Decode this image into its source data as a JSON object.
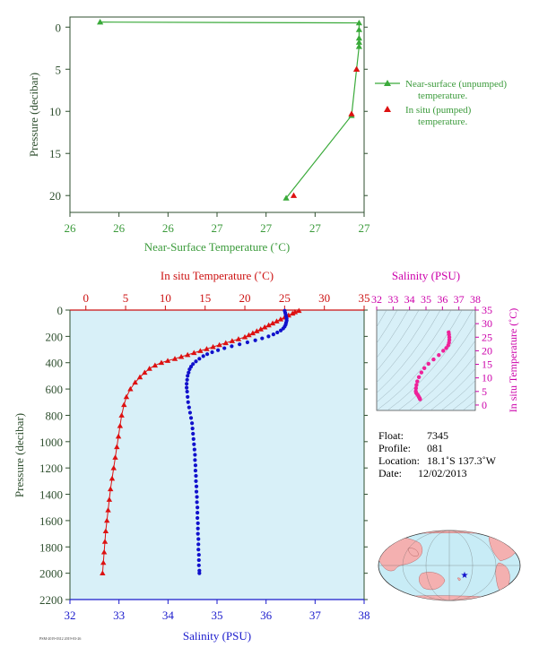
{
  "chart_data": [
    {
      "id": "near_surface",
      "type": "scatter",
      "xlabel": "Near-Surface Temperature (˚C)",
      "ylabel": "Pressure (decibar)",
      "x_tick_labels": [
        "26",
        "26",
        "26",
        "27",
        "27",
        "27",
        "27"
      ],
      "xlim": [
        25.9,
        27.07
      ],
      "y_ticks": [
        0,
        5,
        10,
        15,
        20
      ],
      "ylim": [
        -1.2,
        22
      ],
      "y_inverted": true,
      "series": [
        {
          "name": "Near-surface (unpumped) temperature.",
          "color": "#3aaa3a",
          "marker": "triangle",
          "connected": true,
          "points": [
            {
              "x": 26.02,
              "y": -0.6
            },
            {
              "x": 27.05,
              "y": -0.5
            },
            {
              "x": 27.05,
              "y": 0.3
            },
            {
              "x": 27.05,
              "y": 1.3
            },
            {
              "x": 27.05,
              "y": 1.8
            },
            {
              "x": 27.05,
              "y": 2.3
            },
            {
              "x": 27.04,
              "y": 5.0
            },
            {
              "x": 27.02,
              "y": 10.5
            },
            {
              "x": 26.76,
              "y": 20.3
            }
          ]
        },
        {
          "name": "In situ (pumped) temperature.",
          "color": "#dd1111",
          "marker": "triangle",
          "connected": false,
          "points": [
            {
              "x": 27.04,
              "y": 5.0
            },
            {
              "x": 27.02,
              "y": 10.3
            },
            {
              "x": 26.79,
              "y": 20.0
            }
          ]
        }
      ]
    },
    {
      "id": "main_profile",
      "type": "line",
      "ylabel": "Pressure (decibar)",
      "y_ticks": [
        0,
        200,
        400,
        600,
        800,
        1000,
        1200,
        1400,
        1600,
        1800,
        2000,
        2200
      ],
      "ylim": [
        0,
        2200
      ],
      "y_inverted": true,
      "top_axis": {
        "label": "In situ Temperature (˚C)",
        "ticks": [
          0,
          5,
          10,
          15,
          20,
          25,
          30,
          35
        ],
        "range": [
          -2,
          35
        ]
      },
      "bottom_axis": {
        "label": "Salinity (PSU)",
        "ticks": [
          32,
          33,
          34,
          35,
          36,
          37,
          38
        ],
        "range": [
          32,
          38
        ]
      },
      "series": [
        {
          "name": "In situ Temperature",
          "color": "#dd1111",
          "marker": "triangle",
          "points": [
            {
              "x": 26.8,
              "y": 5
            },
            {
              "x": 26.3,
              "y": 15
            },
            {
              "x": 26.0,
              "y": 25
            },
            {
              "x": 25.5,
              "y": 40
            },
            {
              "x": 25.0,
              "y": 55
            },
            {
              "x": 24.5,
              "y": 70
            },
            {
              "x": 24.0,
              "y": 85
            },
            {
              "x": 23.5,
              "y": 100
            },
            {
              "x": 23.0,
              "y": 115
            },
            {
              "x": 22.5,
              "y": 130
            },
            {
              "x": 22.0,
              "y": 145
            },
            {
              "x": 21.5,
              "y": 160
            },
            {
              "x": 21.0,
              "y": 175
            },
            {
              "x": 20.5,
              "y": 190
            },
            {
              "x": 20.0,
              "y": 205
            },
            {
              "x": 19.2,
              "y": 220
            },
            {
              "x": 18.4,
              "y": 235
            },
            {
              "x": 17.6,
              "y": 250
            },
            {
              "x": 16.8,
              "y": 265
            },
            {
              "x": 16.0,
              "y": 280
            },
            {
              "x": 15.2,
              "y": 295
            },
            {
              "x": 14.4,
              "y": 310
            },
            {
              "x": 13.6,
              "y": 325
            },
            {
              "x": 12.8,
              "y": 340
            },
            {
              "x": 12.0,
              "y": 355
            },
            {
              "x": 11.2,
              "y": 370
            },
            {
              "x": 10.3,
              "y": 385
            },
            {
              "x": 9.5,
              "y": 400
            },
            {
              "x": 8.7,
              "y": 420
            },
            {
              "x": 8.0,
              "y": 445
            },
            {
              "x": 7.4,
              "y": 475
            },
            {
              "x": 6.8,
              "y": 510
            },
            {
              "x": 6.2,
              "y": 550
            },
            {
              "x": 5.6,
              "y": 600
            },
            {
              "x": 5.1,
              "y": 660
            },
            {
              "x": 4.8,
              "y": 720
            },
            {
              "x": 4.5,
              "y": 800
            },
            {
              "x": 4.3,
              "y": 880
            },
            {
              "x": 4.1,
              "y": 960
            },
            {
              "x": 3.9,
              "y": 1040
            },
            {
              "x": 3.7,
              "y": 1120
            },
            {
              "x": 3.5,
              "y": 1200
            },
            {
              "x": 3.3,
              "y": 1280
            },
            {
              "x": 3.1,
              "y": 1360
            },
            {
              "x": 2.95,
              "y": 1440
            },
            {
              "x": 2.8,
              "y": 1520
            },
            {
              "x": 2.65,
              "y": 1600
            },
            {
              "x": 2.5,
              "y": 1680
            },
            {
              "x": 2.4,
              "y": 1760
            },
            {
              "x": 2.3,
              "y": 1840
            },
            {
              "x": 2.2,
              "y": 1920
            },
            {
              "x": 2.1,
              "y": 2000
            }
          ]
        },
        {
          "name": "Salinity",
          "color": "#1111cc",
          "marker": "dot",
          "points": [
            {
              "x": 36.38,
              "y": 5
            },
            {
              "x": 36.39,
              "y": 20
            },
            {
              "x": 36.4,
              "y": 35
            },
            {
              "x": 36.41,
              "y": 50
            },
            {
              "x": 36.42,
              "y": 65
            },
            {
              "x": 36.42,
              "y": 80
            },
            {
              "x": 36.41,
              "y": 95
            },
            {
              "x": 36.4,
              "y": 110
            },
            {
              "x": 36.38,
              "y": 125
            },
            {
              "x": 36.35,
              "y": 140
            },
            {
              "x": 36.3,
              "y": 155
            },
            {
              "x": 36.23,
              "y": 170
            },
            {
              "x": 36.15,
              "y": 185
            },
            {
              "x": 36.05,
              "y": 200
            },
            {
              "x": 35.92,
              "y": 215
            },
            {
              "x": 35.78,
              "y": 230
            },
            {
              "x": 35.62,
              "y": 245
            },
            {
              "x": 35.46,
              "y": 260
            },
            {
              "x": 35.3,
              "y": 275
            },
            {
              "x": 35.15,
              "y": 290
            },
            {
              "x": 35.02,
              "y": 305
            },
            {
              "x": 34.9,
              "y": 320
            },
            {
              "x": 34.8,
              "y": 335
            },
            {
              "x": 34.72,
              "y": 350
            },
            {
              "x": 34.64,
              "y": 370
            },
            {
              "x": 34.57,
              "y": 390
            },
            {
              "x": 34.51,
              "y": 410
            },
            {
              "x": 34.47,
              "y": 430
            },
            {
              "x": 34.44,
              "y": 450
            },
            {
              "x": 34.42,
              "y": 475
            },
            {
              "x": 34.4,
              "y": 500
            },
            {
              "x": 34.39,
              "y": 530
            },
            {
              "x": 34.38,
              "y": 560
            },
            {
              "x": 34.38,
              "y": 590
            },
            {
              "x": 34.39,
              "y": 620
            },
            {
              "x": 34.4,
              "y": 660
            },
            {
              "x": 34.41,
              "y": 700
            },
            {
              "x": 34.43,
              "y": 740
            },
            {
              "x": 34.45,
              "y": 780
            },
            {
              "x": 34.47,
              "y": 820
            },
            {
              "x": 34.49,
              "y": 860
            },
            {
              "x": 34.5,
              "y": 900
            },
            {
              "x": 34.51,
              "y": 940
            },
            {
              "x": 34.52,
              "y": 980
            },
            {
              "x": 34.53,
              "y": 1020
            },
            {
              "x": 34.54,
              "y": 1060
            },
            {
              "x": 34.55,
              "y": 1100
            },
            {
              "x": 34.55,
              "y": 1140
            },
            {
              "x": 34.56,
              "y": 1180
            },
            {
              "x": 34.56,
              "y": 1220
            },
            {
              "x": 34.57,
              "y": 1260
            },
            {
              "x": 34.57,
              "y": 1300
            },
            {
              "x": 34.58,
              "y": 1340
            },
            {
              "x": 34.58,
              "y": 1380
            },
            {
              "x": 34.59,
              "y": 1420
            },
            {
              "x": 34.59,
              "y": 1460
            },
            {
              "x": 34.6,
              "y": 1500
            },
            {
              "x": 34.6,
              "y": 1540
            },
            {
              "x": 34.6,
              "y": 1580
            },
            {
              "x": 34.61,
              "y": 1620
            },
            {
              "x": 34.61,
              "y": 1660
            },
            {
              "x": 34.61,
              "y": 1700
            },
            {
              "x": 34.62,
              "y": 1740
            },
            {
              "x": 34.62,
              "y": 1780
            },
            {
              "x": 34.62,
              "y": 1820
            },
            {
              "x": 34.63,
              "y": 1860
            },
            {
              "x": 34.63,
              "y": 1900
            },
            {
              "x": 34.63,
              "y": 1940
            },
            {
              "x": 34.64,
              "y": 1980
            },
            {
              "x": 34.64,
              "y": 2000
            }
          ]
        }
      ]
    },
    {
      "id": "ts_diagram",
      "type": "scatter",
      "title": "Salinity (PSU)",
      "ylabel": "In situ Temperature (˚C)",
      "x_ticks": [
        32,
        33,
        34,
        35,
        36,
        37,
        38
      ],
      "xlim": [
        32,
        38
      ],
      "y_ticks": [
        0,
        5,
        10,
        15,
        20,
        25,
        30,
        35
      ],
      "ylim": [
        -2,
        35
      ],
      "color": "#ee2299",
      "points": [
        {
          "x": 36.38,
          "y": 26.8
        },
        {
          "x": 36.4,
          "y": 26.0
        },
        {
          "x": 36.42,
          "y": 25.0
        },
        {
          "x": 36.42,
          "y": 24.0
        },
        {
          "x": 36.4,
          "y": 23.0
        },
        {
          "x": 36.35,
          "y": 22.0
        },
        {
          "x": 36.23,
          "y": 21.0
        },
        {
          "x": 36.05,
          "y": 20.0
        },
        {
          "x": 35.78,
          "y": 18.4
        },
        {
          "x": 35.46,
          "y": 16.8
        },
        {
          "x": 35.15,
          "y": 15.2
        },
        {
          "x": 34.9,
          "y": 13.6
        },
        {
          "x": 34.72,
          "y": 12.0
        },
        {
          "x": 34.57,
          "y": 10.3
        },
        {
          "x": 34.47,
          "y": 8.7
        },
        {
          "x": 34.42,
          "y": 7.4
        },
        {
          "x": 34.39,
          "y": 6.2
        },
        {
          "x": 34.38,
          "y": 5.1
        },
        {
          "x": 34.4,
          "y": 4.5
        },
        {
          "x": 34.45,
          "y": 4.1
        },
        {
          "x": 34.5,
          "y": 3.7
        },
        {
          "x": 34.54,
          "y": 3.3
        },
        {
          "x": 34.57,
          "y": 2.95
        },
        {
          "x": 34.6,
          "y": 2.65
        },
        {
          "x": 34.62,
          "y": 2.4
        },
        {
          "x": 34.64,
          "y": 2.1
        }
      ]
    }
  ],
  "float_info": {
    "float_label": "Float:",
    "float_value": "7345",
    "profile_label": "Profile:",
    "profile_value": "081",
    "location_label": "Location:",
    "location_value": "18.1˚S  137.3˚W",
    "date_label": "Date:",
    "date_value": "12/02/2013"
  },
  "footer_tiny_text": "PSM-2019-0312 2019-03-26",
  "colors": {
    "plot_bg": "#d8f0f8",
    "green": "#3aaa3a",
    "red": "#dd1111",
    "blue": "#1111cc",
    "magenta": "#cc00aa",
    "axis_dark": "#2f4f2f",
    "map_ocean": "#c8ecf6",
    "map_land": "#f4b0b0"
  }
}
